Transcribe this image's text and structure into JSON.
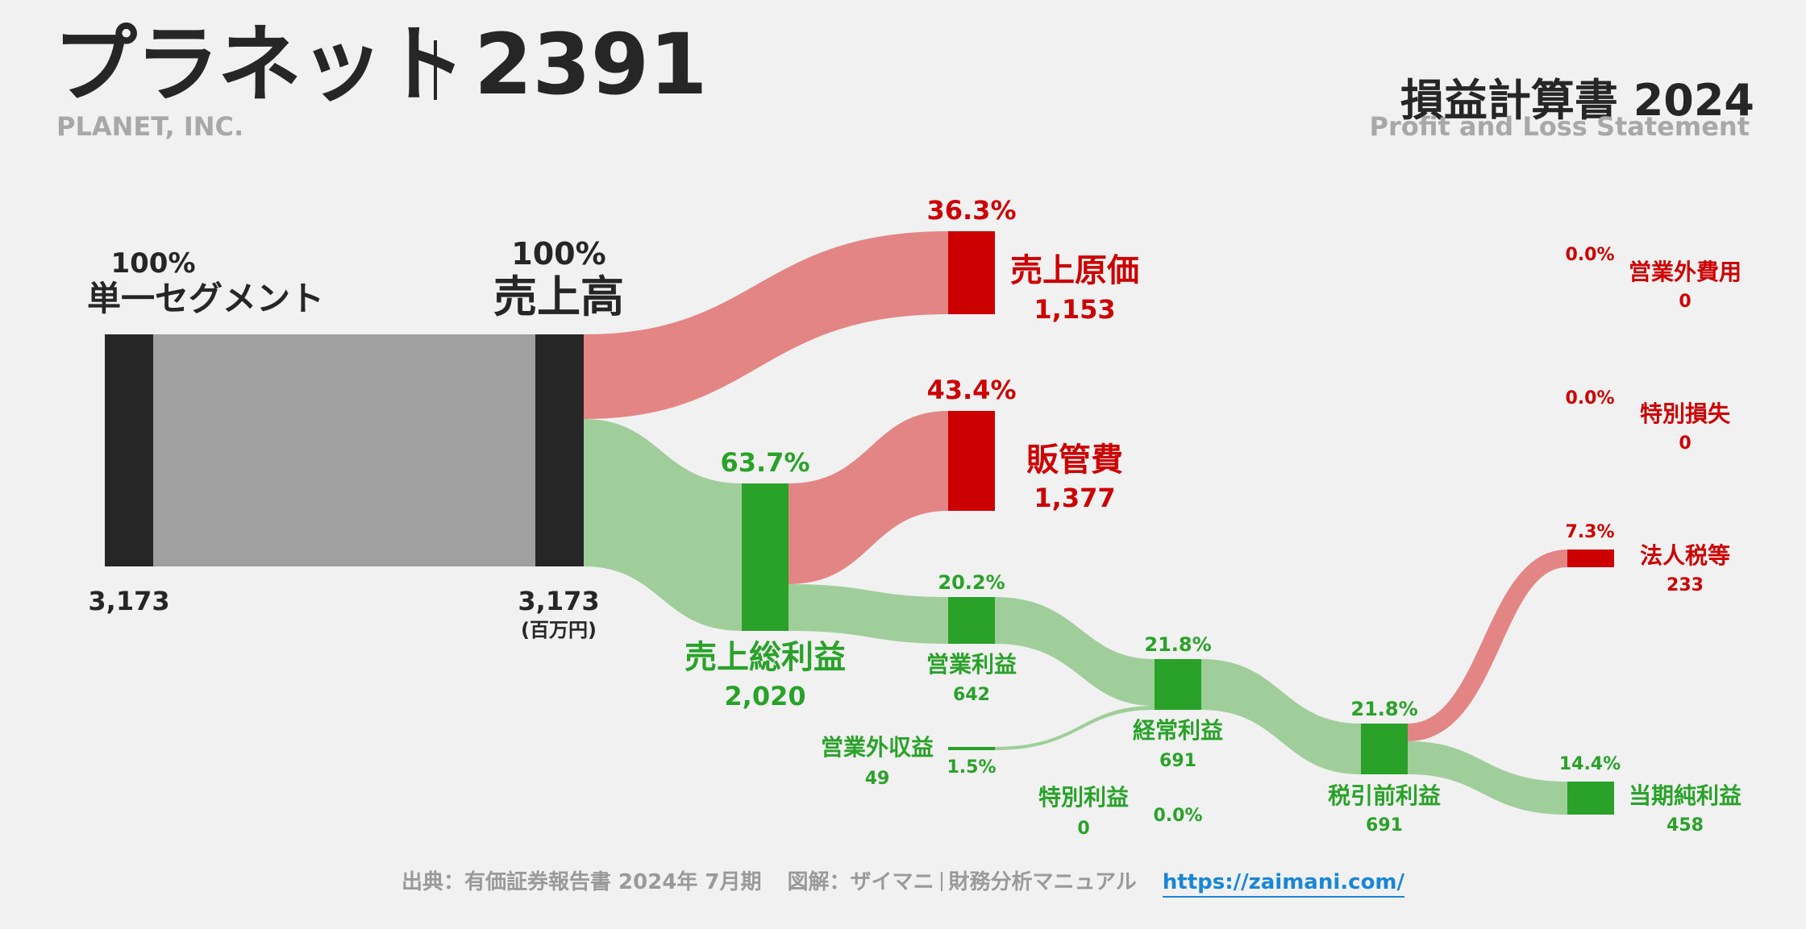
{
  "header": {
    "company_ja": "プラネット",
    "ticker": "2391",
    "company_en": "PLANET, INC.",
    "statement_title": "損益計算書 2024",
    "statement_en": "Profit and Loss Statement"
  },
  "unit": "(百万円)",
  "colors": {
    "loss": "#cc0000",
    "profit": "#2aa22a",
    "base": "#262626",
    "loss_flow": "#e38585",
    "profit_flow": "#9fce9b",
    "base_flow": "#a0a0a0"
  },
  "nodes": {
    "segment": {
      "label": "単一セグメント",
      "pct": "100%",
      "value": "3,173"
    },
    "revenue": {
      "label": "売上高",
      "pct": "100%",
      "value": "3,173"
    },
    "cogs": {
      "label": "売上原価",
      "pct": "36.3%",
      "value": "1,153"
    },
    "gross_profit": {
      "label": "売上総利益",
      "pct": "63.7%",
      "value": "2,020"
    },
    "sga": {
      "label": "販管費",
      "pct": "43.4%",
      "value": "1,377"
    },
    "operating_profit": {
      "label": "営業利益",
      "pct": "20.2%",
      "value": "642"
    },
    "non_op_income": {
      "label": "営業外収益",
      "pct": "1.5%",
      "value": "49"
    },
    "non_op_expense": {
      "label": "営業外費用",
      "pct": "0.0%",
      "value": "0"
    },
    "ordinary_profit": {
      "label": "経常利益",
      "pct": "21.8%",
      "value": "691"
    },
    "extra_income": {
      "label": "特別利益",
      "pct": "0.0%",
      "value": "0"
    },
    "extra_loss": {
      "label": "特別損失",
      "pct": "0.0%",
      "value": "0"
    },
    "pretax_profit": {
      "label": "税引前利益",
      "pct": "21.8%",
      "value": "691"
    },
    "income_tax": {
      "label": "法人税等",
      "pct": "7.3%",
      "value": "233"
    },
    "net_income": {
      "label": "当期純利益",
      "pct": "14.4%",
      "value": "458"
    }
  },
  "footer": {
    "source": "出典：有価証券報告書 2024年 7月期",
    "credit": "図解：ザイマニ",
    "site_name": "財務分析マニュアル",
    "url": "https://zaimani.com/"
  }
}
